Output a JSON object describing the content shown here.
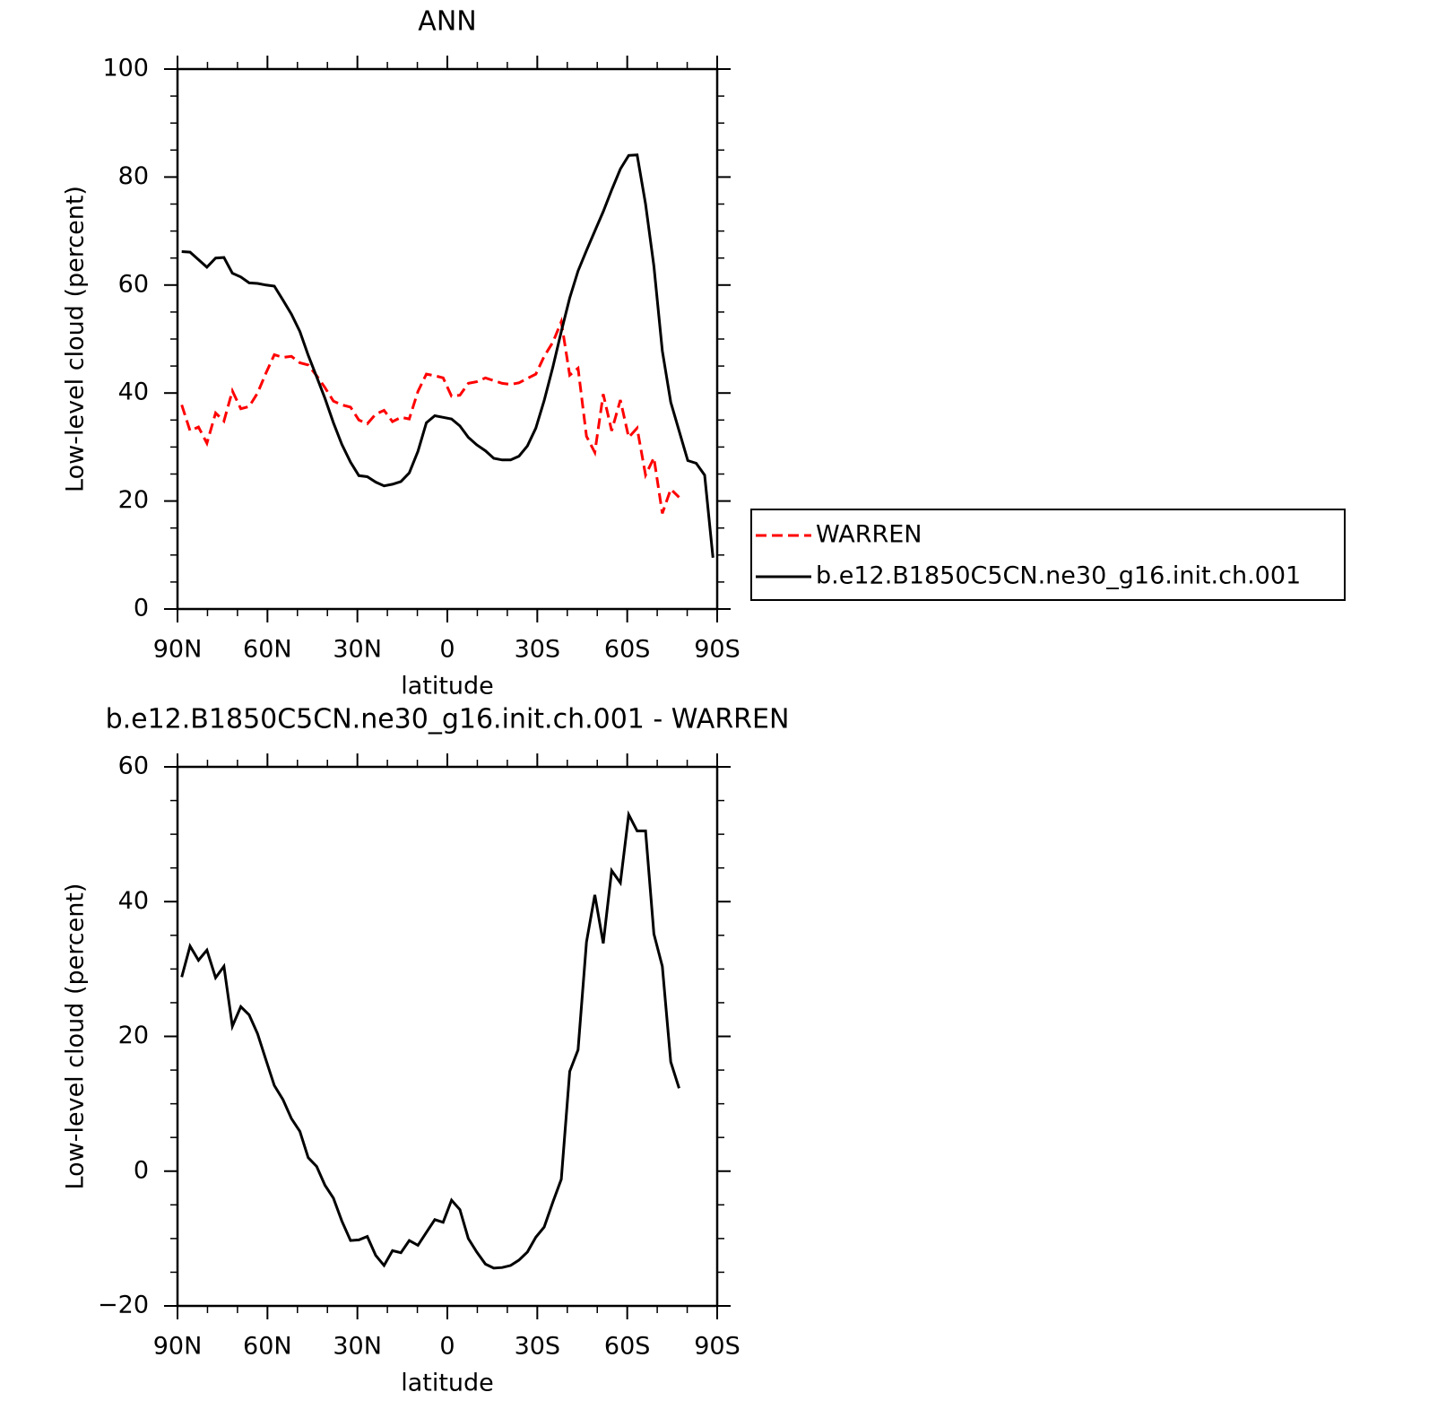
{
  "chart_data": [
    {
      "type": "line",
      "title": "ANN",
      "xlabel": "latitude",
      "ylabel": "Low-level cloud (percent)",
      "x": [
        88.6,
        85.8,
        83.0,
        80.2,
        77.3,
        74.5,
        71.7,
        68.9,
        66.1,
        63.3,
        60.5,
        57.7,
        54.8,
        52.0,
        49.2,
        46.4,
        43.6,
        40.8,
        38.0,
        35.2,
        32.3,
        29.5,
        26.7,
        23.9,
        21.1,
        18.3,
        15.5,
        12.7,
        9.8,
        7.0,
        4.2,
        1.4,
        -1.4,
        -4.2,
        -7.0,
        -9.8,
        -12.7,
        -15.5,
        -18.3,
        -21.1,
        -23.9,
        -26.7,
        -29.5,
        -32.3,
        -35.2,
        -38.0,
        -40.8,
        -43.6,
        -46.4,
        -49.2,
        -52.0,
        -54.8,
        -57.7,
        -60.5,
        -63.3,
        -66.1,
        -68.9,
        -71.7,
        -74.5,
        -77.3,
        -80.2,
        -83.0,
        -85.8,
        -88.6
      ],
      "series": [
        {
          "name": "WARREN",
          "color": "#ff0000",
          "linestyle": "dashed",
          "values": [
            37.8,
            33,
            33.7,
            30.7,
            36.3,
            34.8,
            40.4,
            37.1,
            37.5,
            40,
            43.7,
            47.1,
            46.6,
            46.8,
            45.6,
            45.2,
            43.2,
            41,
            38.5,
            37.8,
            37.4,
            35,
            34.3,
            36.1,
            36.8,
            34.7,
            35.5,
            35.2,
            40.3,
            43.5,
            43.2,
            42.8,
            39.4,
            39.6,
            41.8,
            42.1,
            42.8,
            42.3,
            41.8,
            41.6,
            41.9,
            42.7,
            43.5,
            46.8,
            49.4,
            53.2,
            43.3,
            44.6,
            32,
            29,
            39.8,
            33,
            38.7,
            31.8,
            33.5,
            24.8,
            28,
            17.7,
            22.2,
            20.7,
            null,
            null,
            null,
            null
          ]
        },
        {
          "name": "b.e12.B1850C5CN.ne30_g16.init.ch.001",
          "color": "#000000",
          "linestyle": "solid",
          "values": [
            66.2,
            66.1,
            64.7,
            63.3,
            65,
            65.1,
            62.2,
            61.5,
            60.4,
            60.3,
            60.0,
            59.8,
            57.2,
            54.6,
            51.4,
            47,
            43,
            39,
            34.5,
            30.5,
            27.2,
            24.7,
            24.5,
            23.5,
            22.8,
            23.1,
            23.6,
            25.2,
            29.2,
            34.5,
            35.8,
            35.5,
            35.2,
            33.9,
            31.8,
            30.4,
            29.3,
            27.9,
            27.6,
            27.6,
            28.3,
            30.2,
            33.5,
            38.6,
            44.8,
            51.4,
            57.6,
            62.6,
            66.4,
            70,
            73.6,
            77.6,
            81.5,
            84,
            84.1,
            75,
            63.5,
            47.8,
            38.3,
            33,
            27.5,
            27,
            24.8,
            9.5
          ]
        }
      ],
      "legend": "right",
      "xlim": [
        90,
        -90
      ],
      "xticks": [
        {
          "value": 90,
          "label": "90N"
        },
        {
          "value": 60,
          "label": "60N"
        },
        {
          "value": 30,
          "label": "30N"
        },
        0,
        {
          "value": -30,
          "label": "30S"
        },
        {
          "value": -60,
          "label": "60S"
        },
        {
          "value": -90,
          "label": "90S"
        }
      ],
      "xminorticks": [
        80,
        70,
        50,
        40,
        20,
        10,
        -10,
        -20,
        -40,
        -50,
        -70,
        -80
      ],
      "ylim": [
        0,
        100
      ],
      "yticks": [
        0,
        20,
        40,
        60,
        80,
        100
      ],
      "yminorticks": [
        5,
        10,
        15,
        25,
        30,
        35,
        45,
        50,
        55,
        65,
        70,
        75,
        85,
        90,
        95
      ]
    },
    {
      "type": "line",
      "title": "b.e12.B1850C5CN.ne30_g16.init.ch.001 - WARREN",
      "xlabel": "latitude",
      "ylabel": "Low-level cloud (percent)",
      "x": [
        88.6,
        85.8,
        83.0,
        80.2,
        77.3,
        74.5,
        71.7,
        68.9,
        66.1,
        63.3,
        60.5,
        57.7,
        54.8,
        52.0,
        49.2,
        46.4,
        43.6,
        40.8,
        38.0,
        35.2,
        32.3,
        29.5,
        26.7,
        23.9,
        21.1,
        18.3,
        15.5,
        12.7,
        9.8,
        7.0,
        4.2,
        1.4,
        -1.4,
        -4.2,
        -7.0,
        -9.8,
        -12.7,
        -15.5,
        -18.3,
        -21.1,
        -23.9,
        -26.7,
        -29.5,
        -32.3,
        -35.2,
        -38.0,
        -40.8,
        -43.6,
        -46.4,
        -49.2,
        -52.0,
        -54.8,
        -57.7,
        -60.5,
        -63.3,
        -66.1,
        -68.9,
        -71.7,
        -74.5,
        -77.3,
        -80.2,
        -83.0,
        -85.8,
        -88.6
      ],
      "values": [
        28.8,
        33.4,
        31.3,
        32.8,
        28.7,
        30.4,
        21.5,
        24.4,
        23.2,
        20.4,
        16.5,
        12.7,
        10.6,
        7.8,
        5.9,
        2,
        0.7,
        -2.1,
        -4,
        -7.4,
        -10.3,
        -10.2,
        -9.7,
        -12.5,
        -14,
        -11.8,
        -12.1,
        -10.3,
        -11,
        -9.1,
        -7.2,
        -7.6,
        -4.3,
        -5.7,
        -10,
        -12,
        -13.8,
        -14.4,
        -14.3,
        -14,
        -13.2,
        -12,
        -9.8,
        -8.3,
        -4.6,
        -1.2,
        14.8,
        18,
        34,
        41,
        33.8,
        44.6,
        42.8,
        52.9,
        50.5,
        50.5,
        35.2,
        30.4,
        16.2,
        12.3,
        null,
        null,
        null,
        null
      ],
      "color": "#000000",
      "xlim": [
        90,
        -90
      ],
      "xticks": [
        {
          "value": 90,
          "label": "90N"
        },
        {
          "value": 60,
          "label": "60N"
        },
        {
          "value": 30,
          "label": "30N"
        },
        0,
        {
          "value": -30,
          "label": "30S"
        },
        {
          "value": -60,
          "label": "60S"
        },
        {
          "value": -90,
          "label": "90S"
        }
      ],
      "xminorticks": [
        80,
        70,
        50,
        40,
        20,
        10,
        -10,
        -20,
        -40,
        -50,
        -70,
        -80
      ],
      "ylim": [
        -20,
        60
      ],
      "yticks": [
        {
          "value": -20,
          "label": "−20"
        },
        0,
        20,
        40,
        60
      ],
      "yminorticks": [
        -15,
        -10,
        -5,
        5,
        10,
        15,
        25,
        30,
        35,
        45,
        50,
        55
      ]
    }
  ]
}
